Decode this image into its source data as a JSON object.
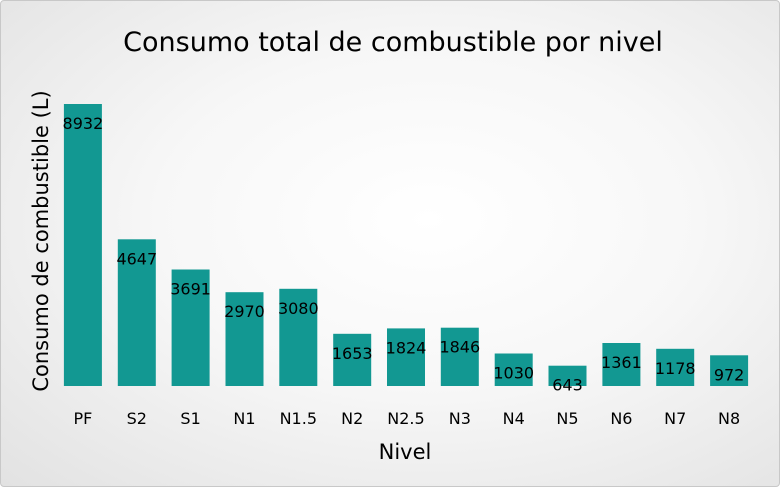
{
  "chart_data": {
    "type": "bar",
    "title": "Consumo total de combustible por nivel",
    "xlabel": "Nivel",
    "ylabel": "Consumo de combustible (L)",
    "categories": [
      "PF",
      "S2",
      "S1",
      "N1",
      "N1.5",
      "N2",
      "N2.5",
      "N3",
      "N4",
      "N5",
      "N6",
      "N7",
      "N8"
    ],
    "values": [
      8932,
      4647,
      3691,
      2970,
      3080,
      1653,
      1824,
      1846,
      1030,
      643,
      1361,
      1178,
      972
    ],
    "ylim": [
      0,
      8932
    ],
    "grid": false,
    "legend": "none",
    "bar_color": "#129892"
  }
}
